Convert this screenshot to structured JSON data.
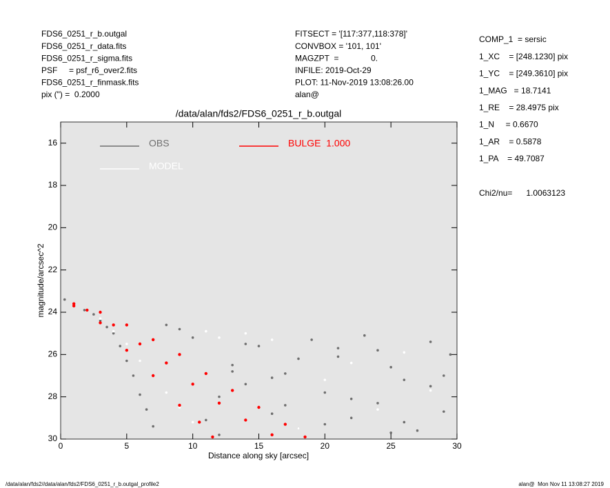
{
  "header": {
    "left": [
      "FDS6_0251_r_b.outgal",
      "FDS6_0251_r_data.fits",
      "FDS6_0251_r_sigma.fits",
      "PSF     = psf_r6_over2.fits",
      "FDS6_0251_r_finmask.fits",
      "pix (\") =  0.2000"
    ],
    "middle": [
      "FITSECT = '[117:377,118:378]'",
      "CONVBOX = '101, 101'",
      "MAGZPT  =              0.",
      "INFILE: 2019-Oct-29",
      "PLOT: 11-Nov-2019 13:08:26.00",
      "alan@"
    ],
    "right": [
      "COMP_1  = sersic",
      "1_XC    = [248.1230] pix",
      "1_YC    = [249.3610] pix",
      "1_MAG   = 18.7141",
      "1_RE    = 28.4975 pix",
      "1_N     = 0.6670",
      "1_AR    = 0.5878",
      "1_PA    = 49.7087"
    ],
    "chi2": "Chi2/nu=      1.0063123"
  },
  "footer": {
    "left": "/data/alan/fds2//data/alan/fds2/FDS6_0251_r_b.outgal_profile2",
    "right": "alan@  Mon Nov 11 13:08:27 2019"
  },
  "chart_data": {
    "type": "scatter",
    "title": "/data/alan/fds2/FDS6_0251_r_b.outgal",
    "xlabel": "Distance along sky [arcsec]",
    "ylabel": "magnitude/arcsec^2",
    "xlim": [
      0,
      30
    ],
    "ylim": [
      30,
      15
    ],
    "xticks": [
      0,
      5,
      10,
      15,
      20,
      25,
      30
    ],
    "yticks": [
      16,
      18,
      20,
      22,
      24,
      26,
      28,
      30
    ],
    "background": "#e5e5e5",
    "series": [
      {
        "name": "OBS",
        "color": "#6e6e6e",
        "x": [
          0.3,
          1,
          1.8,
          2.5,
          3,
          3.5,
          4,
          4.5,
          5,
          5.5,
          6,
          6.5,
          7,
          8,
          9,
          10,
          11,
          12,
          13,
          14,
          15,
          16,
          17,
          18,
          19,
          20,
          21,
          22,
          23,
          24,
          25,
          26,
          27,
          28,
          29,
          29.5,
          12,
          14,
          16,
          18,
          20,
          22,
          24,
          26,
          28,
          13,
          17,
          21,
          25,
          29
        ],
        "values": [
          23.4,
          23.6,
          23.9,
          24.1,
          24.4,
          24.7,
          25.0,
          25.6,
          26.3,
          27.0,
          27.9,
          28.6,
          29.4,
          24.6,
          24.8,
          25.2,
          29.1,
          28.0,
          26.5,
          27.4,
          25.6,
          28.8,
          26.9,
          29.5,
          25.3,
          27.8,
          26.1,
          29.0,
          25.1,
          28.3,
          26.6,
          27.2,
          29.6,
          25.4,
          28.7,
          26.0,
          29.8,
          25.5,
          27.1,
          26.2,
          29.3,
          28.1,
          25.8,
          29.2,
          27.5,
          26.8,
          28.4,
          25.7,
          29.7,
          27.0
        ]
      },
      {
        "name": "MODEL",
        "color": "#ffffff",
        "x": [
          1,
          2,
          3,
          4,
          5,
          6,
          7,
          8,
          9,
          10,
          11,
          12,
          14,
          16,
          18,
          20,
          22,
          24,
          26,
          28
        ],
        "values": [
          23.6,
          23.9,
          24.3,
          24.9,
          25.5,
          26.3,
          27.0,
          27.8,
          28.5,
          29.2,
          24.9,
          25.2,
          25.0,
          25.3,
          29.5,
          27.2,
          26.4,
          28.6,
          25.9,
          27.7
        ]
      },
      {
        "name": "BULGE  1.000",
        "color": "#ff0000",
        "x": [
          1,
          3,
          5,
          7,
          9,
          11,
          13,
          15,
          17,
          18.5,
          2,
          4,
          6,
          8,
          10,
          12,
          14,
          16,
          1,
          3,
          5,
          7,
          9,
          10.5,
          11.5
        ],
        "values": [
          23.6,
          24.0,
          24.6,
          25.3,
          26.0,
          26.9,
          27.7,
          28.5,
          29.3,
          29.9,
          23.9,
          24.6,
          25.5,
          26.4,
          27.4,
          28.3,
          29.1,
          29.8,
          23.7,
          24.5,
          25.8,
          27.0,
          28.4,
          29.2,
          29.9
        ]
      }
    ]
  }
}
